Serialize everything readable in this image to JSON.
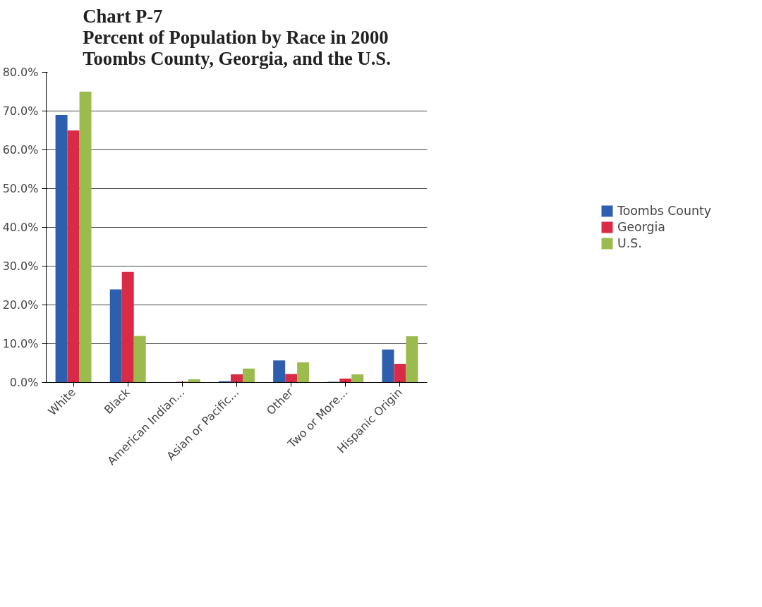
{
  "chart_data": {
    "type": "bar",
    "title": "Chart P-7\nPercent of Population by Race in 2000\nToombs County, Georgia, and the U.S.",
    "categories": [
      "White",
      "Black",
      "American Indian...",
      "Asian or Pacific...",
      "Other",
      "Two or More...",
      "Hispanic Origin"
    ],
    "series": [
      {
        "name": "Toombs County",
        "color": "#2e5fae",
        "values": [
          69,
          24,
          null,
          0.3,
          5.7,
          0.2,
          8.5
        ]
      },
      {
        "name": "Georgia",
        "color": "#d92b45",
        "values": [
          65,
          28.5,
          0.2,
          2.1,
          2.2,
          1.0,
          4.8
        ]
      },
      {
        "name": "U.S.",
        "color": "#9cbb4f",
        "values": [
          75,
          12,
          0.8,
          3.6,
          5.2,
          2.1,
          11.9
        ]
      }
    ],
    "ylim": [
      0,
      80
    ],
    "yticks": [
      {
        "value": 0,
        "label": "0.0%"
      },
      {
        "value": 10,
        "label": "10.0%"
      },
      {
        "value": 20,
        "label": "20.0%"
      },
      {
        "value": 30,
        "label": "30.0%"
      },
      {
        "value": 40,
        "label": "40.0%"
      },
      {
        "value": 50,
        "label": "50.0%"
      },
      {
        "value": 60,
        "label": "60.0%"
      },
      {
        "value": 70,
        "label": "70.0%"
      },
      {
        "value": 80,
        "label": "80.0%"
      }
    ],
    "grid": "y",
    "legend": "right"
  }
}
